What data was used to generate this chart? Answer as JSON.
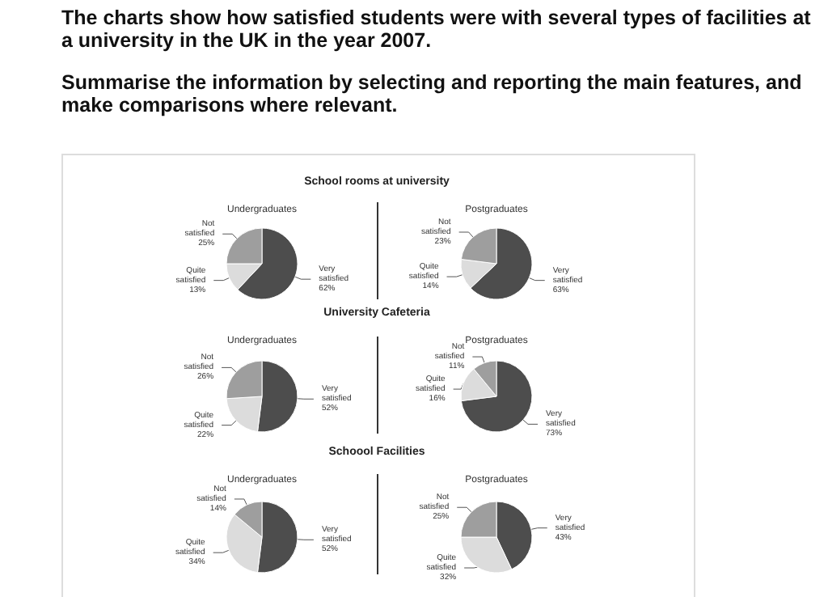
{
  "chart_data": [
    {
      "type": "other",
      "annotations": [
        "The charts show how satisfied students were with several types of facilities at a university in the UK in the year 2007.",
        "Summarise the information by selecting and reporting the main features, and make comparisons where relevant."
      ]
    },
    {
      "type": "pie",
      "title": "School rooms at university",
      "subtitle": "Undergraduates",
      "categories": [
        "Very satisfied",
        "Quite satisfied",
        "Not satisfied"
      ],
      "values": [
        62,
        13,
        25
      ],
      "value_labels": [
        "62%",
        "13%",
        "25%"
      ],
      "colors": [
        "#4d4d4d",
        "#dcdcdc",
        "#9e9e9e"
      ]
    },
    {
      "type": "pie",
      "subtitle": "Postgraduates",
      "categories": [
        "Very satisfied",
        "Quite satisfied",
        "Not satisfied"
      ],
      "values": [
        63,
        14,
        23
      ],
      "value_labels": [
        "63%",
        "14%",
        "23%"
      ],
      "colors": [
        "#4d4d4d",
        "#dcdcdc",
        "#9e9e9e"
      ]
    },
    {
      "type": "pie",
      "title": "University Cafeteria",
      "subtitle": "Undergraduates",
      "categories": [
        "Very satisfied",
        "Quite satisfied",
        "Not satisfied"
      ],
      "values": [
        52,
        22,
        26
      ],
      "value_labels": [
        "52%",
        "22%",
        "26%"
      ],
      "colors": [
        "#4d4d4d",
        "#dcdcdc",
        "#9e9e9e"
      ]
    },
    {
      "type": "pie",
      "subtitle": "Postgraduates",
      "categories": [
        "Very satisfied",
        "Quite satisfied",
        "Not satisfied"
      ],
      "values": [
        73,
        16,
        11
      ],
      "value_labels": [
        "73%",
        "16%",
        "11%"
      ],
      "colors": [
        "#4d4d4d",
        "#dcdcdc",
        "#9e9e9e"
      ]
    },
    {
      "type": "pie",
      "title": "Schoool Facilities",
      "subtitle": "Undergraduates",
      "categories": [
        "Very satisfied",
        "Quite satisfied",
        "Not satisfied"
      ],
      "values": [
        52,
        34,
        14
      ],
      "value_labels": [
        "52%",
        "34%",
        "14%"
      ],
      "colors": [
        "#4d4d4d",
        "#dcdcdc",
        "#9e9e9e"
      ]
    },
    {
      "type": "pie",
      "subtitle": "Postgraduates",
      "categories": [
        "Very satisfied",
        "Quite satisfied",
        "Not satisfied"
      ],
      "values": [
        43,
        32,
        25
      ],
      "value_labels": [
        "43%",
        "32%",
        "25%"
      ],
      "colors": [
        "#4d4d4d",
        "#dcdcdc",
        "#9e9e9e"
      ]
    }
  ]
}
